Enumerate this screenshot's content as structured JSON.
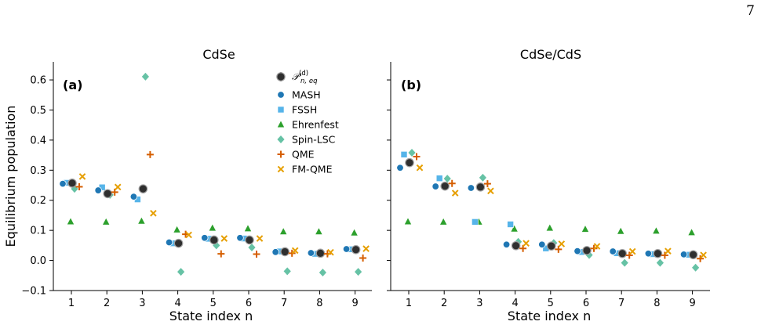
{
  "page": {
    "page_number": "7"
  },
  "colors": {
    "MASH": "#1f77b4",
    "FSSH": "#56b4e9",
    "Ehrenfest": "#2ca02c",
    "Spin-LSC": "#66c2a5",
    "QME": "#d55e00",
    "FM-QME": "#e69f00",
    "reference": "#2f2f2f"
  },
  "legend": {
    "reference_label_main": "𝒫",
    "reference_label_sup": "(d)",
    "reference_label_sub": "n, eq",
    "entries": [
      {
        "name": "MASH",
        "marker": "circle"
      },
      {
        "name": "FSSH",
        "marker": "square"
      },
      {
        "name": "Ehrenfest",
        "marker": "triangle"
      },
      {
        "name": "Spin-LSC",
        "marker": "diamond"
      },
      {
        "name": "QME",
        "marker": "plus"
      },
      {
        "name": "FM-QME",
        "marker": "x"
      }
    ]
  },
  "chart_data": [
    {
      "type": "scatter",
      "title": "CdSe",
      "panel_label": "(a)",
      "xlabel": "State index n",
      "ylabel": "Equilibrium population",
      "x": [
        1,
        2,
        3,
        4,
        5,
        6,
        7,
        8,
        9
      ],
      "xticks": [
        "1",
        "2",
        "3",
        "4",
        "5",
        "6",
        "7",
        "8",
        "9"
      ],
      "yticks": [
        "−0.1",
        "0.0",
        "0.1",
        "0.2",
        "0.3",
        "0.4",
        "0.5",
        "0.6"
      ],
      "ylim": [
        -0.1,
        0.66
      ],
      "series": [
        {
          "name": "MASH",
          "values": [
            0.255,
            0.233,
            0.212,
            0.06,
            0.075,
            0.075,
            0.028,
            0.025,
            0.038
          ]
        },
        {
          "name": "FSSH",
          "values": [
            0.258,
            0.243,
            0.203,
            0.057,
            0.072,
            0.073,
            0.03,
            0.022,
            0.037
          ]
        },
        {
          "name": "Ehrenfest",
          "values": [
            0.129,
            0.128,
            0.131,
            0.102,
            0.108,
            0.106,
            0.096,
            0.096,
            0.092
          ]
        },
        {
          "name": "Spin-LSC",
          "values": [
            0.238,
            0.218,
            0.611,
            -0.038,
            0.05,
            0.043,
            -0.036,
            -0.04,
            -0.038
          ]
        },
        {
          "name": "QME",
          "values": [
            0.245,
            0.227,
            0.352,
            0.087,
            0.022,
            0.021,
            0.024,
            0.022,
            0.008
          ]
        },
        {
          "name": "FM-QME",
          "values": [
            0.279,
            0.244,
            0.157,
            0.085,
            0.073,
            0.073,
            0.033,
            0.027,
            0.039
          ]
        },
        {
          "name": "reference",
          "values": [
            0.257,
            0.222,
            0.238,
            0.057,
            0.068,
            0.068,
            0.029,
            0.024,
            0.036
          ]
        }
      ]
    },
    {
      "type": "scatter",
      "title": "CdSe/CdS",
      "panel_label": "(b)",
      "xlabel": "State index n",
      "ylabel": "",
      "x": [
        1,
        2,
        3,
        4,
        5,
        6,
        7,
        8,
        9
      ],
      "xticks": [
        "1",
        "2",
        "3",
        "4",
        "5",
        "6",
        "7",
        "8",
        "9"
      ],
      "ylim": [
        -0.1,
        0.66
      ],
      "series": [
        {
          "name": "MASH",
          "values": [
            0.308,
            0.246,
            0.241,
            0.053,
            0.053,
            0.031,
            0.03,
            0.023,
            0.02
          ]
        },
        {
          "name": "FSSH",
          "values": [
            0.352,
            0.273,
            0.128,
            0.12,
            0.04,
            0.028,
            0.024,
            0.021,
            0.019
          ]
        },
        {
          "name": "Ehrenfest",
          "values": [
            0.129,
            0.128,
            0.128,
            0.105,
            0.108,
            0.104,
            0.097,
            0.098,
            0.093
          ]
        },
        {
          "name": "Spin-LSC",
          "values": [
            0.358,
            0.272,
            0.275,
            0.062,
            0.058,
            0.018,
            -0.008,
            -0.008,
            -0.024
          ]
        },
        {
          "name": "QME",
          "values": [
            0.345,
            0.256,
            0.255,
            0.04,
            0.037,
            0.04,
            0.017,
            0.017,
            0.006
          ]
        },
        {
          "name": "FM-QME",
          "values": [
            0.308,
            0.224,
            0.231,
            0.057,
            0.055,
            0.047,
            0.03,
            0.031,
            0.018
          ]
        },
        {
          "name": "reference",
          "values": [
            0.325,
            0.247,
            0.244,
            0.049,
            0.048,
            0.033,
            0.023,
            0.023,
            0.019
          ]
        }
      ]
    }
  ]
}
